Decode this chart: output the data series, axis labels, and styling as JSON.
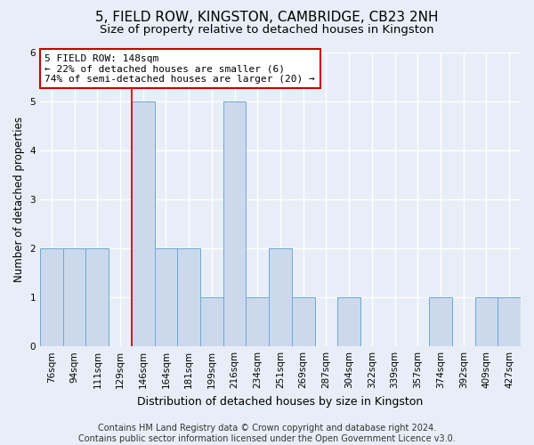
{
  "title1": "5, FIELD ROW, KINGSTON, CAMBRIDGE, CB23 2NH",
  "title2": "Size of property relative to detached houses in Kingston",
  "xlabel": "Distribution of detached houses by size in Kingston",
  "ylabel": "Number of detached properties",
  "categories": [
    "76sqm",
    "94sqm",
    "111sqm",
    "129sqm",
    "146sqm",
    "164sqm",
    "181sqm",
    "199sqm",
    "216sqm",
    "234sqm",
    "251sqm",
    "269sqm",
    "287sqm",
    "304sqm",
    "322sqm",
    "339sqm",
    "357sqm",
    "374sqm",
    "392sqm",
    "409sqm",
    "427sqm"
  ],
  "values": [
    2,
    2,
    2,
    0,
    5,
    2,
    2,
    1,
    5,
    1,
    2,
    1,
    0,
    1,
    0,
    0,
    0,
    1,
    0,
    1,
    1
  ],
  "bar_color": "#ccd9ed",
  "bar_edge_color": "#6fa8d0",
  "highlight_index": 4,
  "highlight_line_color": "#cc0000",
  "annotation_text": "5 FIELD ROW: 148sqm\n← 22% of detached houses are smaller (6)\n74% of semi-detached houses are larger (20) →",
  "annotation_box_facecolor": "#ffffff",
  "annotation_box_edgecolor": "#cc0000",
  "ylim": [
    0,
    6
  ],
  "yticks": [
    0,
    1,
    2,
    3,
    4,
    5,
    6
  ],
  "footer": "Contains HM Land Registry data © Crown copyright and database right 2024.\nContains public sector information licensed under the Open Government Licence v3.0.",
  "background_color": "#e8eef7",
  "grid_color": "#ffffff",
  "title1_fontsize": 11,
  "title2_fontsize": 9.5,
  "xlabel_fontsize": 9,
  "ylabel_fontsize": 8.5,
  "tick_fontsize": 7.5,
  "annotation_fontsize": 8,
  "footer_fontsize": 7
}
